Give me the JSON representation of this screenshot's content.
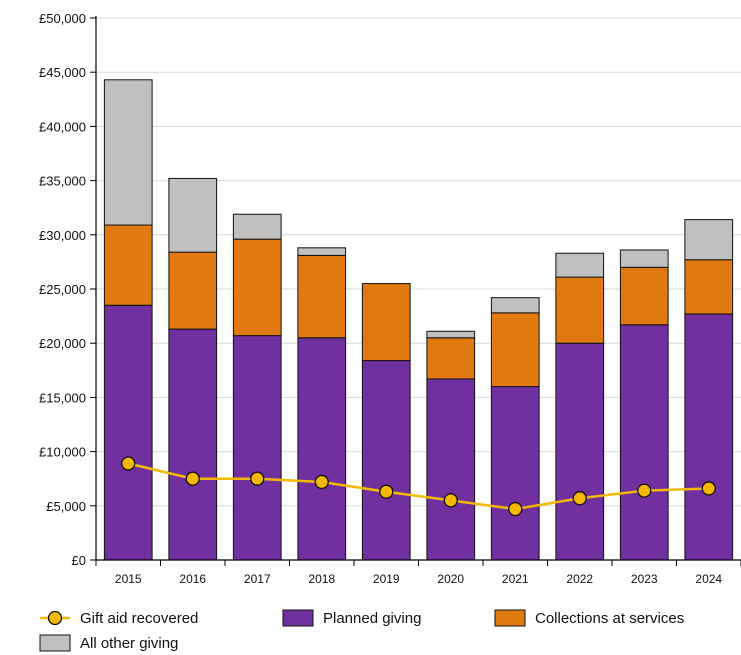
{
  "chart_data": {
    "type": "bar",
    "stacked": true,
    "categories": [
      "2015",
      "2016",
      "2017",
      "2018",
      "2019",
      "2020",
      "2021",
      "2022",
      "2023",
      "2024"
    ],
    "series": [
      {
        "name": "Planned giving",
        "type": "bar",
        "color": "#7030a0",
        "values": [
          23500,
          21300,
          20700,
          20500,
          18400,
          16700,
          16000,
          20000,
          21700,
          22700
        ]
      },
      {
        "name": "Collections at services",
        "type": "bar",
        "color": "#e07a10",
        "values": [
          7400,
          7100,
          8900,
          7600,
          7100,
          3800,
          6800,
          6100,
          5300,
          5000
        ]
      },
      {
        "name": "All other giving",
        "type": "bar",
        "color": "#c0c0c0",
        "values": [
          13400,
          6800,
          2300,
          700,
          0,
          600,
          1400,
          2200,
          1600,
          3700
        ]
      },
      {
        "name": "Gift aid recovered",
        "type": "line",
        "color": "#f5b800",
        "values": [
          8900,
          7500,
          7500,
          7200,
          6300,
          5500,
          4700,
          5700,
          6400,
          6600
        ]
      }
    ],
    "ylim": [
      0,
      50000
    ],
    "yticks": [
      "£0",
      "£5,000",
      "£10,000",
      "£15,000",
      "£20,000",
      "£25,000",
      "£30,000",
      "£35,000",
      "£40,000",
      "£45,000",
      "£50,000"
    ],
    "grid": true,
    "legend_position": "bottom",
    "legend_order": [
      "Gift aid recovered",
      "Planned giving",
      "Collections at services",
      "All other giving"
    ]
  }
}
